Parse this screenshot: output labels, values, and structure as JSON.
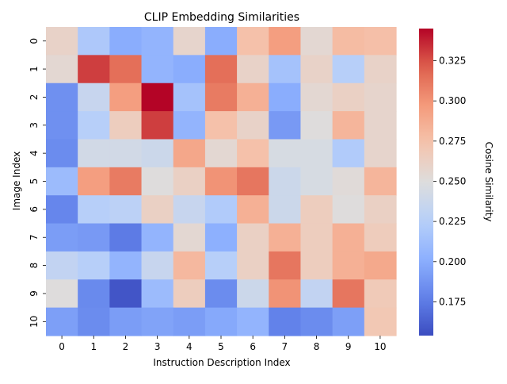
{
  "chart_data": {
    "type": "heatmap",
    "title": "CLIP Embedding Similarities",
    "xlabel": "Instruction Description Index",
    "ylabel": "Image Index",
    "x_categories": [
      "0",
      "1",
      "2",
      "3",
      "4",
      "5",
      "6",
      "7",
      "8",
      "9",
      "10"
    ],
    "y_categories": [
      "0",
      "1",
      "2",
      "3",
      "4",
      "5",
      "6",
      "7",
      "8",
      "9",
      "10"
    ],
    "colormap": "coolwarm",
    "vmin": 0.154,
    "vmax": 0.345,
    "colorbar": {
      "label": "Cosine Similarity",
      "ticks": [
        "0.175",
        "0.200",
        "0.225",
        "0.250",
        "0.275",
        "0.300",
        "0.325"
      ],
      "tick_values": [
        0.175,
        0.2,
        0.225,
        0.25,
        0.275,
        0.3,
        0.325
      ]
    },
    "values": [
      [
        0.26,
        0.22,
        0.2,
        0.205,
        0.258,
        0.2,
        0.275,
        0.295,
        0.255,
        0.278,
        0.276
      ],
      [
        0.255,
        0.33,
        0.315,
        0.205,
        0.2,
        0.315,
        0.26,
        0.215,
        0.26,
        0.225,
        0.26
      ],
      [
        0.185,
        0.235,
        0.295,
        0.345,
        0.215,
        0.31,
        0.285,
        0.2,
        0.255,
        0.262,
        0.258
      ],
      [
        0.185,
        0.225,
        0.265,
        0.33,
        0.205,
        0.275,
        0.26,
        0.19,
        0.25,
        0.282,
        0.258
      ],
      [
        0.183,
        0.242,
        0.242,
        0.238,
        0.29,
        0.255,
        0.275,
        0.245,
        0.245,
        0.222,
        0.258
      ],
      [
        0.21,
        0.295,
        0.31,
        0.25,
        0.262,
        0.3,
        0.312,
        0.238,
        0.245,
        0.252,
        0.282
      ],
      [
        0.18,
        0.225,
        0.228,
        0.262,
        0.235,
        0.222,
        0.285,
        0.238,
        0.265,
        0.25,
        0.262
      ],
      [
        0.192,
        0.19,
        0.175,
        0.205,
        0.255,
        0.202,
        0.262,
        0.285,
        0.265,
        0.285,
        0.266
      ],
      [
        0.232,
        0.225,
        0.205,
        0.235,
        0.28,
        0.225,
        0.262,
        0.312,
        0.265,
        0.285,
        0.289
      ],
      [
        0.25,
        0.182,
        0.158,
        0.21,
        0.265,
        0.183,
        0.238,
        0.3,
        0.232,
        0.312,
        0.268
      ],
      [
        0.193,
        0.183,
        0.192,
        0.195,
        0.192,
        0.198,
        0.205,
        0.178,
        0.183,
        0.193,
        0.27
      ]
    ]
  }
}
